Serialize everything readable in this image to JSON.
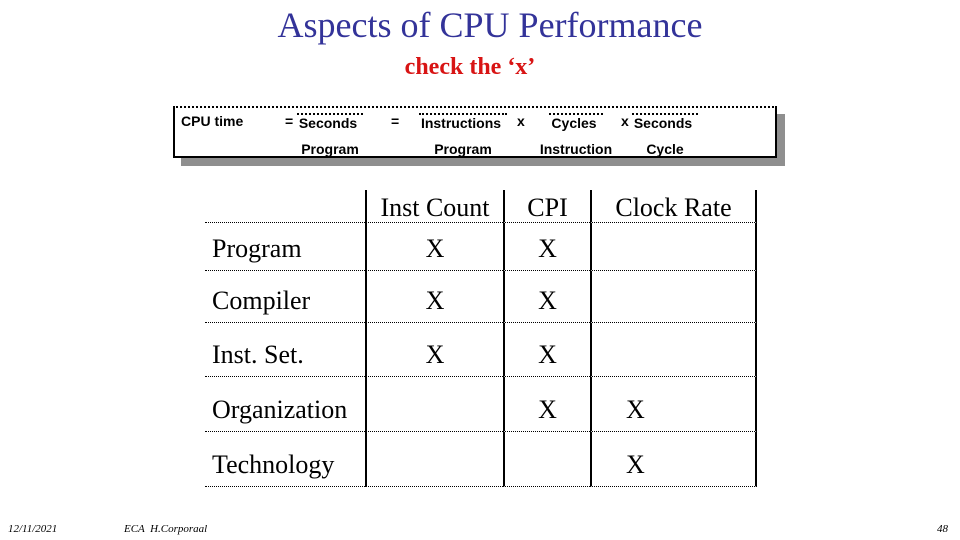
{
  "title": "Aspects of CPU Performance",
  "subtitle": "check the ‘x’",
  "equation": {
    "lhs": "CPU time",
    "equals": "=",
    "times": "x",
    "fractions": [
      {
        "num": "Seconds",
        "den": "Program"
      },
      {
        "num": "Instructions",
        "den": "Program"
      },
      {
        "num": "Cycles",
        "den": "Instruction"
      },
      {
        "num": "Seconds",
        "den": "Cycle"
      }
    ]
  },
  "table": {
    "col_headers": [
      "Inst Count",
      "CPI",
      "Clock Rate"
    ],
    "rows": [
      {
        "label": "Program",
        "cells": [
          "X",
          "X",
          ""
        ]
      },
      {
        "label": "Compiler",
        "cells": [
          "X",
          "X",
          ""
        ]
      },
      {
        "label": "Inst. Set.",
        "cells": [
          "X",
          "X",
          ""
        ]
      },
      {
        "label": "Organization",
        "cells": [
          "",
          "X",
          "X"
        ]
      },
      {
        "label": "Technology",
        "cells": [
          "",
          "",
          "X"
        ]
      }
    ]
  },
  "footer": {
    "date": "12/11/2021",
    "author": "ECA  H.Corporaal",
    "page": "48"
  },
  "colors": {
    "title": "#333399",
    "subtitle": "#d81414",
    "text": "#000000",
    "shadow": "#8f8f8f"
  }
}
